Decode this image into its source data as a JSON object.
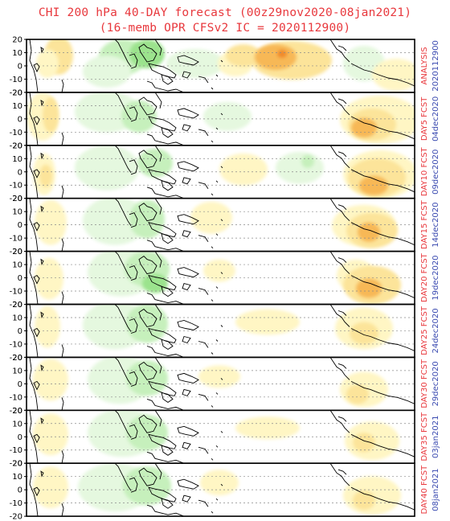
{
  "title": {
    "line1": "CHI 200 hPa 40-DAY forecast (00z29nov2020-08jan2021)",
    "line2": "(16-memb OPR CFSv2 IC = 2020112900)"
  },
  "y_ticks": [
    "20",
    "10",
    "0",
    "-10",
    "-20"
  ],
  "colors": {
    "title": "#e8383d",
    "label_fcst": "#e8383d",
    "label_date": "#3a4ab0",
    "neg_strong": "#9be38d",
    "neg_mid": "#c6f0bc",
    "neg_weak": "#e5f8df",
    "pos_weak": "#fff6c4",
    "pos_mid": "#fce49a",
    "pos_strong": "#f7b856",
    "pos_max": "#f08a2c"
  },
  "panels": [
    {
      "label": "ANALYSIS",
      "date": "2020112900"
    },
    {
      "label": "DAY5 FCST",
      "date": "04dec2020"
    },
    {
      "label": "DAY10 FCST",
      "date": "09dec2020"
    },
    {
      "label": "DAY15 FCST",
      "date": "14dec2020"
    },
    {
      "label": "DAY20 FCST",
      "date": "19dec2020"
    },
    {
      "label": "DAY25 FCST",
      "date": "24dec2020"
    },
    {
      "label": "DAY30 FCST",
      "date": "29dec2020"
    },
    {
      "label": "DAY35 FCST",
      "date": "03jan2021"
    },
    {
      "label": "DAY40 FCST",
      "date": "08jan2021"
    }
  ]
}
